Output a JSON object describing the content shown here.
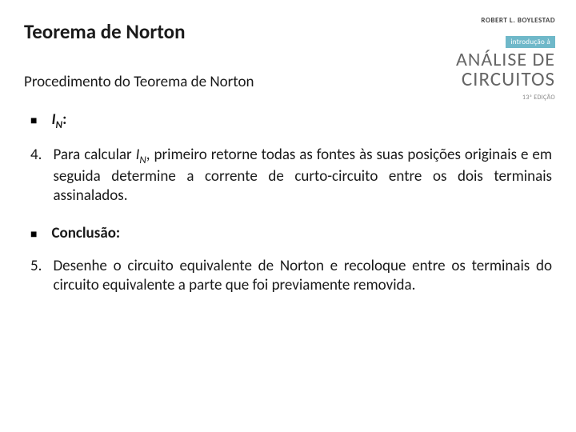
{
  "slide": {
    "title": "Teorema de Norton",
    "subtitle": "Procedimento do Teorema de Norton",
    "in_label_prefix": "I",
    "in_label_sub": "N",
    "in_label_suffix": ":",
    "step4_num": "4.",
    "step4_pre": "Para calcular ",
    "step4_i": "I",
    "step4_sub": "N",
    "step4_post": ", primeiro retorne todas as fontes às suas posições originais e em seguida determine a corrente de curto-circuito entre os dois terminais assinalados.",
    "conclusion_label": "Conclusão:",
    "step5_num": "5.",
    "step5_text": "Desenhe o circuito equivalente de Norton e recoloque entre os terminais do circuito equivalente a parte que foi previamente removida."
  },
  "book": {
    "author": "ROBERT L. BOYLESTAD",
    "intro": "introdução à",
    "title_line1": "ANÁLISE DE",
    "title_line2": "CIRCUITOS",
    "edition": "13ª EDIÇÃO",
    "colors": {
      "intro_bg": "#6fb8c9",
      "title_color": "#666666"
    }
  }
}
